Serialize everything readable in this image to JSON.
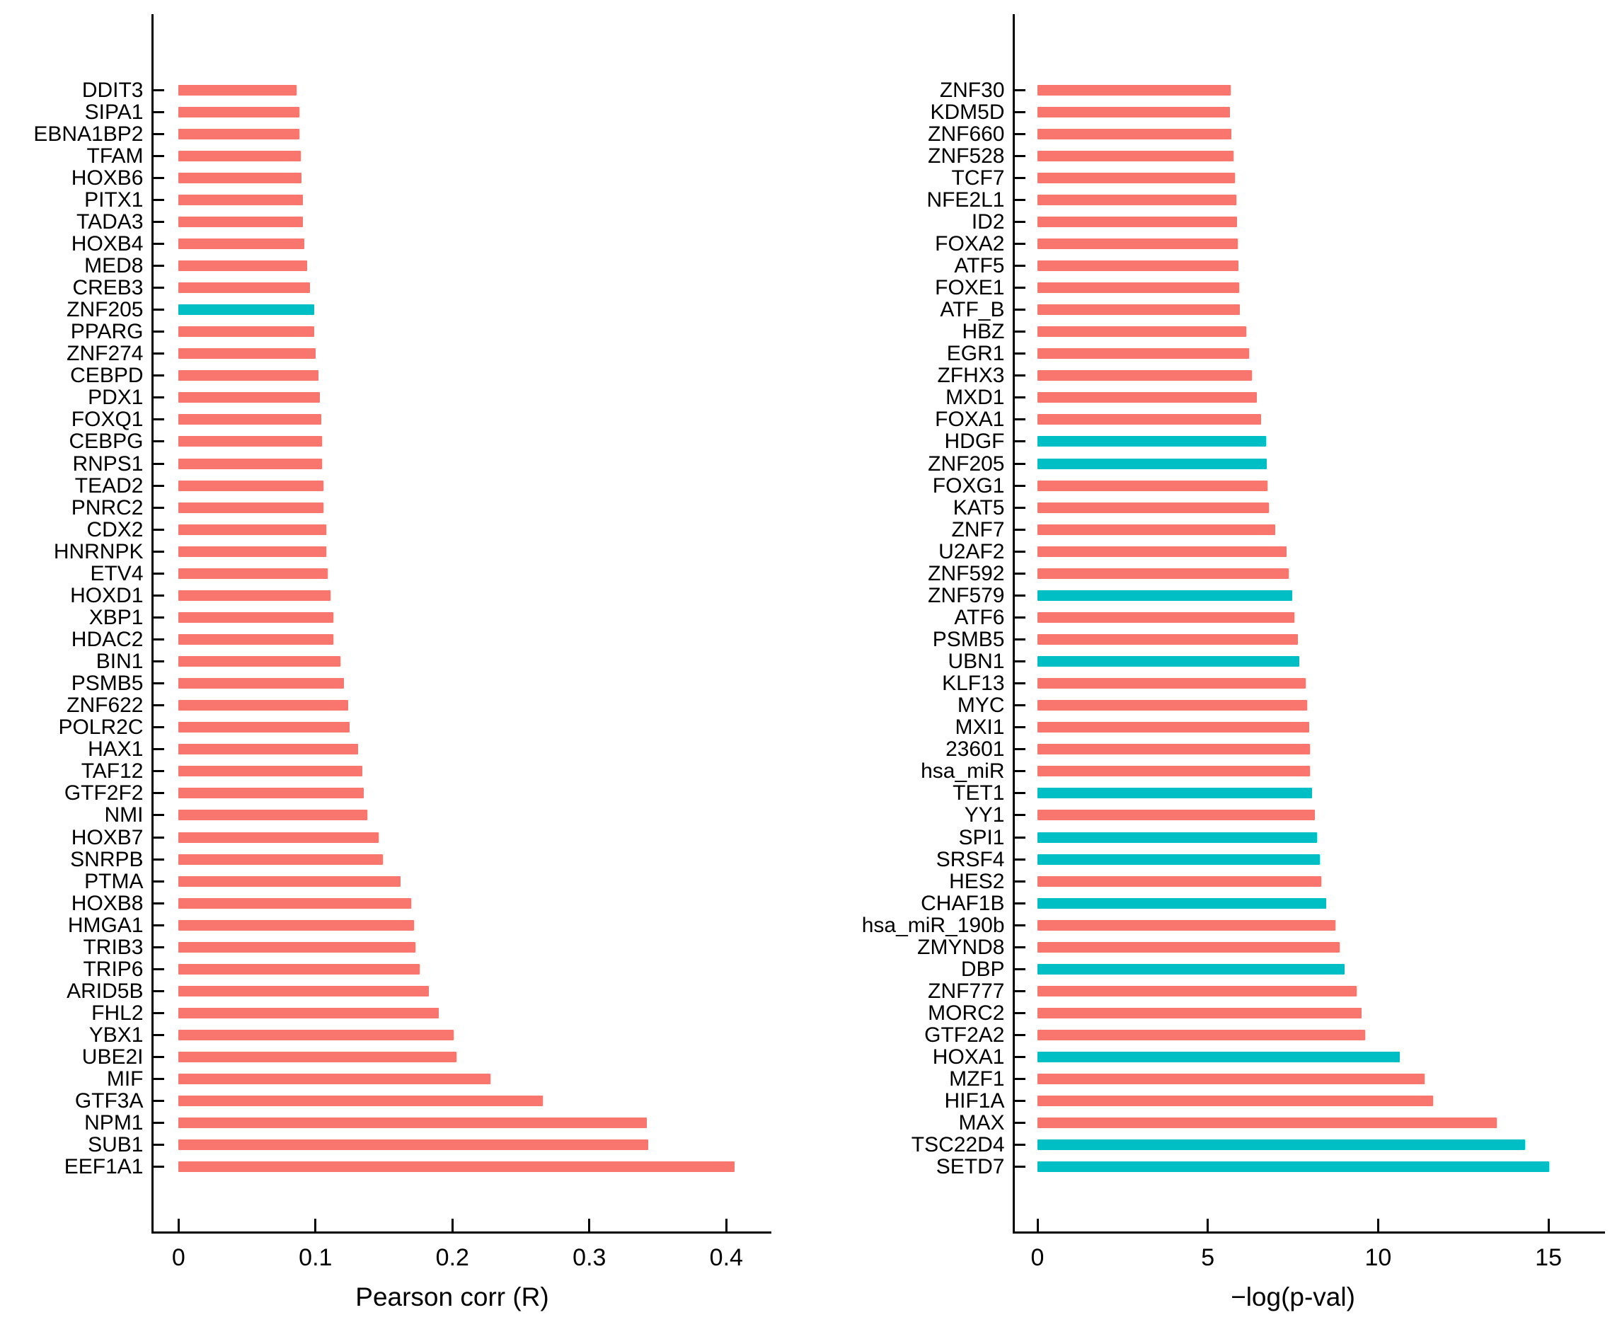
{
  "colors": {
    "bar_default": "#F8766D",
    "bar_highlight": "#00BFC4",
    "axis": "#000000",
    "background": "#ffffff"
  },
  "chart_data": [
    {
      "type": "bar",
      "orientation": "horizontal",
      "panel": "left",
      "xlabel": "Pearson corr (R)",
      "ylabel": "",
      "xlim": [
        0,
        0.43
      ],
      "xticks": [
        0,
        0.1,
        0.2,
        0.3,
        0.4
      ],
      "xtick_labels": [
        "0",
        "0.1",
        "0.2",
        "0.3",
        "0.4"
      ],
      "grid": false,
      "legend": "none",
      "bars": [
        {
          "gene": "DDIT3",
          "value": 0.086,
          "highlight": false
        },
        {
          "gene": "SIPA1",
          "value": 0.088,
          "highlight": false
        },
        {
          "gene": "EBNA1BP2",
          "value": 0.088,
          "highlight": false
        },
        {
          "gene": "TFAM",
          "value": 0.089,
          "highlight": false
        },
        {
          "gene": "HOXB6",
          "value": 0.09,
          "highlight": false
        },
        {
          "gene": "PITX1",
          "value": 0.091,
          "highlight": false
        },
        {
          "gene": "TADA3",
          "value": 0.091,
          "highlight": false
        },
        {
          "gene": "HOXB4",
          "value": 0.092,
          "highlight": false
        },
        {
          "gene": "MED8",
          "value": 0.094,
          "highlight": false
        },
        {
          "gene": "CREB3",
          "value": 0.096,
          "highlight": false
        },
        {
          "gene": "ZNF205",
          "value": 0.099,
          "highlight": true
        },
        {
          "gene": "PPARG",
          "value": 0.099,
          "highlight": false
        },
        {
          "gene": "ZNF274",
          "value": 0.1,
          "highlight": false
        },
        {
          "gene": "CEBPD",
          "value": 0.102,
          "highlight": false
        },
        {
          "gene": "PDX1",
          "value": 0.103,
          "highlight": false
        },
        {
          "gene": "FOXQ1",
          "value": 0.104,
          "highlight": false
        },
        {
          "gene": "CEBPG",
          "value": 0.105,
          "highlight": false
        },
        {
          "gene": "RNPS1",
          "value": 0.105,
          "highlight": false
        },
        {
          "gene": "TEAD2",
          "value": 0.106,
          "highlight": false
        },
        {
          "gene": "PNRC2",
          "value": 0.106,
          "highlight": false
        },
        {
          "gene": "CDX2",
          "value": 0.108,
          "highlight": false
        },
        {
          "gene": "HNRNPK",
          "value": 0.108,
          "highlight": false
        },
        {
          "gene": "ETV4",
          "value": 0.109,
          "highlight": false
        },
        {
          "gene": "HOXD1",
          "value": 0.111,
          "highlight": false
        },
        {
          "gene": "XBP1",
          "value": 0.113,
          "highlight": false
        },
        {
          "gene": "HDAC2",
          "value": 0.113,
          "highlight": false
        },
        {
          "gene": "BIN1",
          "value": 0.118,
          "highlight": false
        },
        {
          "gene": "PSMB5",
          "value": 0.121,
          "highlight": false
        },
        {
          "gene": "ZNF622",
          "value": 0.124,
          "highlight": false
        },
        {
          "gene": "POLR2C",
          "value": 0.125,
          "highlight": false
        },
        {
          "gene": "HAX1",
          "value": 0.131,
          "highlight": false
        },
        {
          "gene": "TAF12",
          "value": 0.134,
          "highlight": false
        },
        {
          "gene": "GTF2F2",
          "value": 0.135,
          "highlight": false
        },
        {
          "gene": "NMI",
          "value": 0.138,
          "highlight": false
        },
        {
          "gene": "HOXB7",
          "value": 0.146,
          "highlight": false
        },
        {
          "gene": "SNRPB",
          "value": 0.149,
          "highlight": false
        },
        {
          "gene": "PTMA",
          "value": 0.162,
          "highlight": false
        },
        {
          "gene": "HOXB8",
          "value": 0.17,
          "highlight": false
        },
        {
          "gene": "HMGA1",
          "value": 0.172,
          "highlight": false
        },
        {
          "gene": "TRIB3",
          "value": 0.173,
          "highlight": false
        },
        {
          "gene": "TRIP6",
          "value": 0.176,
          "highlight": false
        },
        {
          "gene": "ARID5B",
          "value": 0.183,
          "highlight": false
        },
        {
          "gene": "FHL2",
          "value": 0.19,
          "highlight": false
        },
        {
          "gene": "YBX1",
          "value": 0.201,
          "highlight": false
        },
        {
          "gene": "UBE2I",
          "value": 0.203,
          "highlight": false
        },
        {
          "gene": "MIF",
          "value": 0.228,
          "highlight": false
        },
        {
          "gene": "GTF3A",
          "value": 0.266,
          "highlight": false
        },
        {
          "gene": "NPM1",
          "value": 0.342,
          "highlight": false
        },
        {
          "gene": "SUB1",
          "value": 0.343,
          "highlight": false
        },
        {
          "gene": "EEF1A1",
          "value": 0.406,
          "highlight": false
        }
      ]
    },
    {
      "type": "bar",
      "orientation": "horizontal",
      "panel": "right",
      "xlabel": "−log(p-val)",
      "ylabel": "",
      "xlim": [
        0,
        16.5
      ],
      "xticks": [
        0,
        5,
        10,
        15
      ],
      "xtick_labels": [
        "0",
        "5",
        "10",
        "15"
      ],
      "grid": false,
      "legend": "none",
      "bars": [
        {
          "gene": "ZNF30",
          "value": 5.68,
          "highlight": false
        },
        {
          "gene": "KDM5D",
          "value": 5.66,
          "highlight": false
        },
        {
          "gene": "ZNF660",
          "value": 5.7,
          "highlight": false
        },
        {
          "gene": "ZNF528",
          "value": 5.75,
          "highlight": false
        },
        {
          "gene": "TCF7",
          "value": 5.8,
          "highlight": false
        },
        {
          "gene": "NFE2L1",
          "value": 5.84,
          "highlight": false
        },
        {
          "gene": "ID2",
          "value": 5.86,
          "highlight": false
        },
        {
          "gene": "FOXA2",
          "value": 5.88,
          "highlight": false
        },
        {
          "gene": "ATF5",
          "value": 5.9,
          "highlight": false
        },
        {
          "gene": "FOXE1",
          "value": 5.93,
          "highlight": false
        },
        {
          "gene": "ATF_B",
          "value": 5.95,
          "highlight": false
        },
        {
          "gene": "HBZ",
          "value": 6.12,
          "highlight": false
        },
        {
          "gene": "EGR1",
          "value": 6.21,
          "highlight": false
        },
        {
          "gene": "ZFHX3",
          "value": 6.3,
          "highlight": false
        },
        {
          "gene": "MXD1",
          "value": 6.44,
          "highlight": false
        },
        {
          "gene": "FOXA1",
          "value": 6.56,
          "highlight": false
        },
        {
          "gene": "HDGF",
          "value": 6.7,
          "highlight": true
        },
        {
          "gene": "ZNF205",
          "value": 6.73,
          "highlight": true
        },
        {
          "gene": "FOXG1",
          "value": 6.76,
          "highlight": false
        },
        {
          "gene": "KAT5",
          "value": 6.79,
          "highlight": false
        },
        {
          "gene": "ZNF7",
          "value": 6.99,
          "highlight": false
        },
        {
          "gene": "U2AF2",
          "value": 7.31,
          "highlight": false
        },
        {
          "gene": "ZNF592",
          "value": 7.38,
          "highlight": false
        },
        {
          "gene": "ZNF579",
          "value": 7.47,
          "highlight": true
        },
        {
          "gene": "ATF6",
          "value": 7.55,
          "highlight": false
        },
        {
          "gene": "PSMB5",
          "value": 7.65,
          "highlight": false
        },
        {
          "gene": "UBN1",
          "value": 7.69,
          "highlight": true
        },
        {
          "gene": "KLF13",
          "value": 7.88,
          "highlight": false
        },
        {
          "gene": "MYC",
          "value": 7.91,
          "highlight": false
        },
        {
          "gene": "MXI1",
          "value": 7.97,
          "highlight": false
        },
        {
          "gene": "23601",
          "value": 7.99,
          "highlight": false
        },
        {
          "gene": "hsa_miR",
          "value": 8.0,
          "highlight": false
        },
        {
          "gene": "TET1",
          "value": 8.05,
          "highlight": true
        },
        {
          "gene": "YY1",
          "value": 8.14,
          "highlight": false
        },
        {
          "gene": "SPI1",
          "value": 8.21,
          "highlight": true
        },
        {
          "gene": "SRSF4",
          "value": 8.29,
          "highlight": true
        },
        {
          "gene": "HES2",
          "value": 8.34,
          "highlight": false
        },
        {
          "gene": "CHAF1B",
          "value": 8.47,
          "highlight": true
        },
        {
          "gene": "hsa_miR_190b",
          "value": 8.75,
          "highlight": false
        },
        {
          "gene": "ZMYND8",
          "value": 8.87,
          "highlight": false
        },
        {
          "gene": "DBP",
          "value": 9.01,
          "highlight": true
        },
        {
          "gene": "ZNF777",
          "value": 9.37,
          "highlight": false
        },
        {
          "gene": "MORC2",
          "value": 9.51,
          "highlight": false
        },
        {
          "gene": "GTF2A2",
          "value": 9.61,
          "highlight": false
        },
        {
          "gene": "HOXA1",
          "value": 10.63,
          "highlight": true
        },
        {
          "gene": "MZF1",
          "value": 11.37,
          "highlight": false
        },
        {
          "gene": "HIF1A",
          "value": 11.62,
          "highlight": false
        },
        {
          "gene": "MAX",
          "value": 13.49,
          "highlight": false
        },
        {
          "gene": "TSC22D4",
          "value": 14.31,
          "highlight": true
        },
        {
          "gene": "SETD7",
          "value": 15.01,
          "highlight": true
        }
      ]
    }
  ]
}
